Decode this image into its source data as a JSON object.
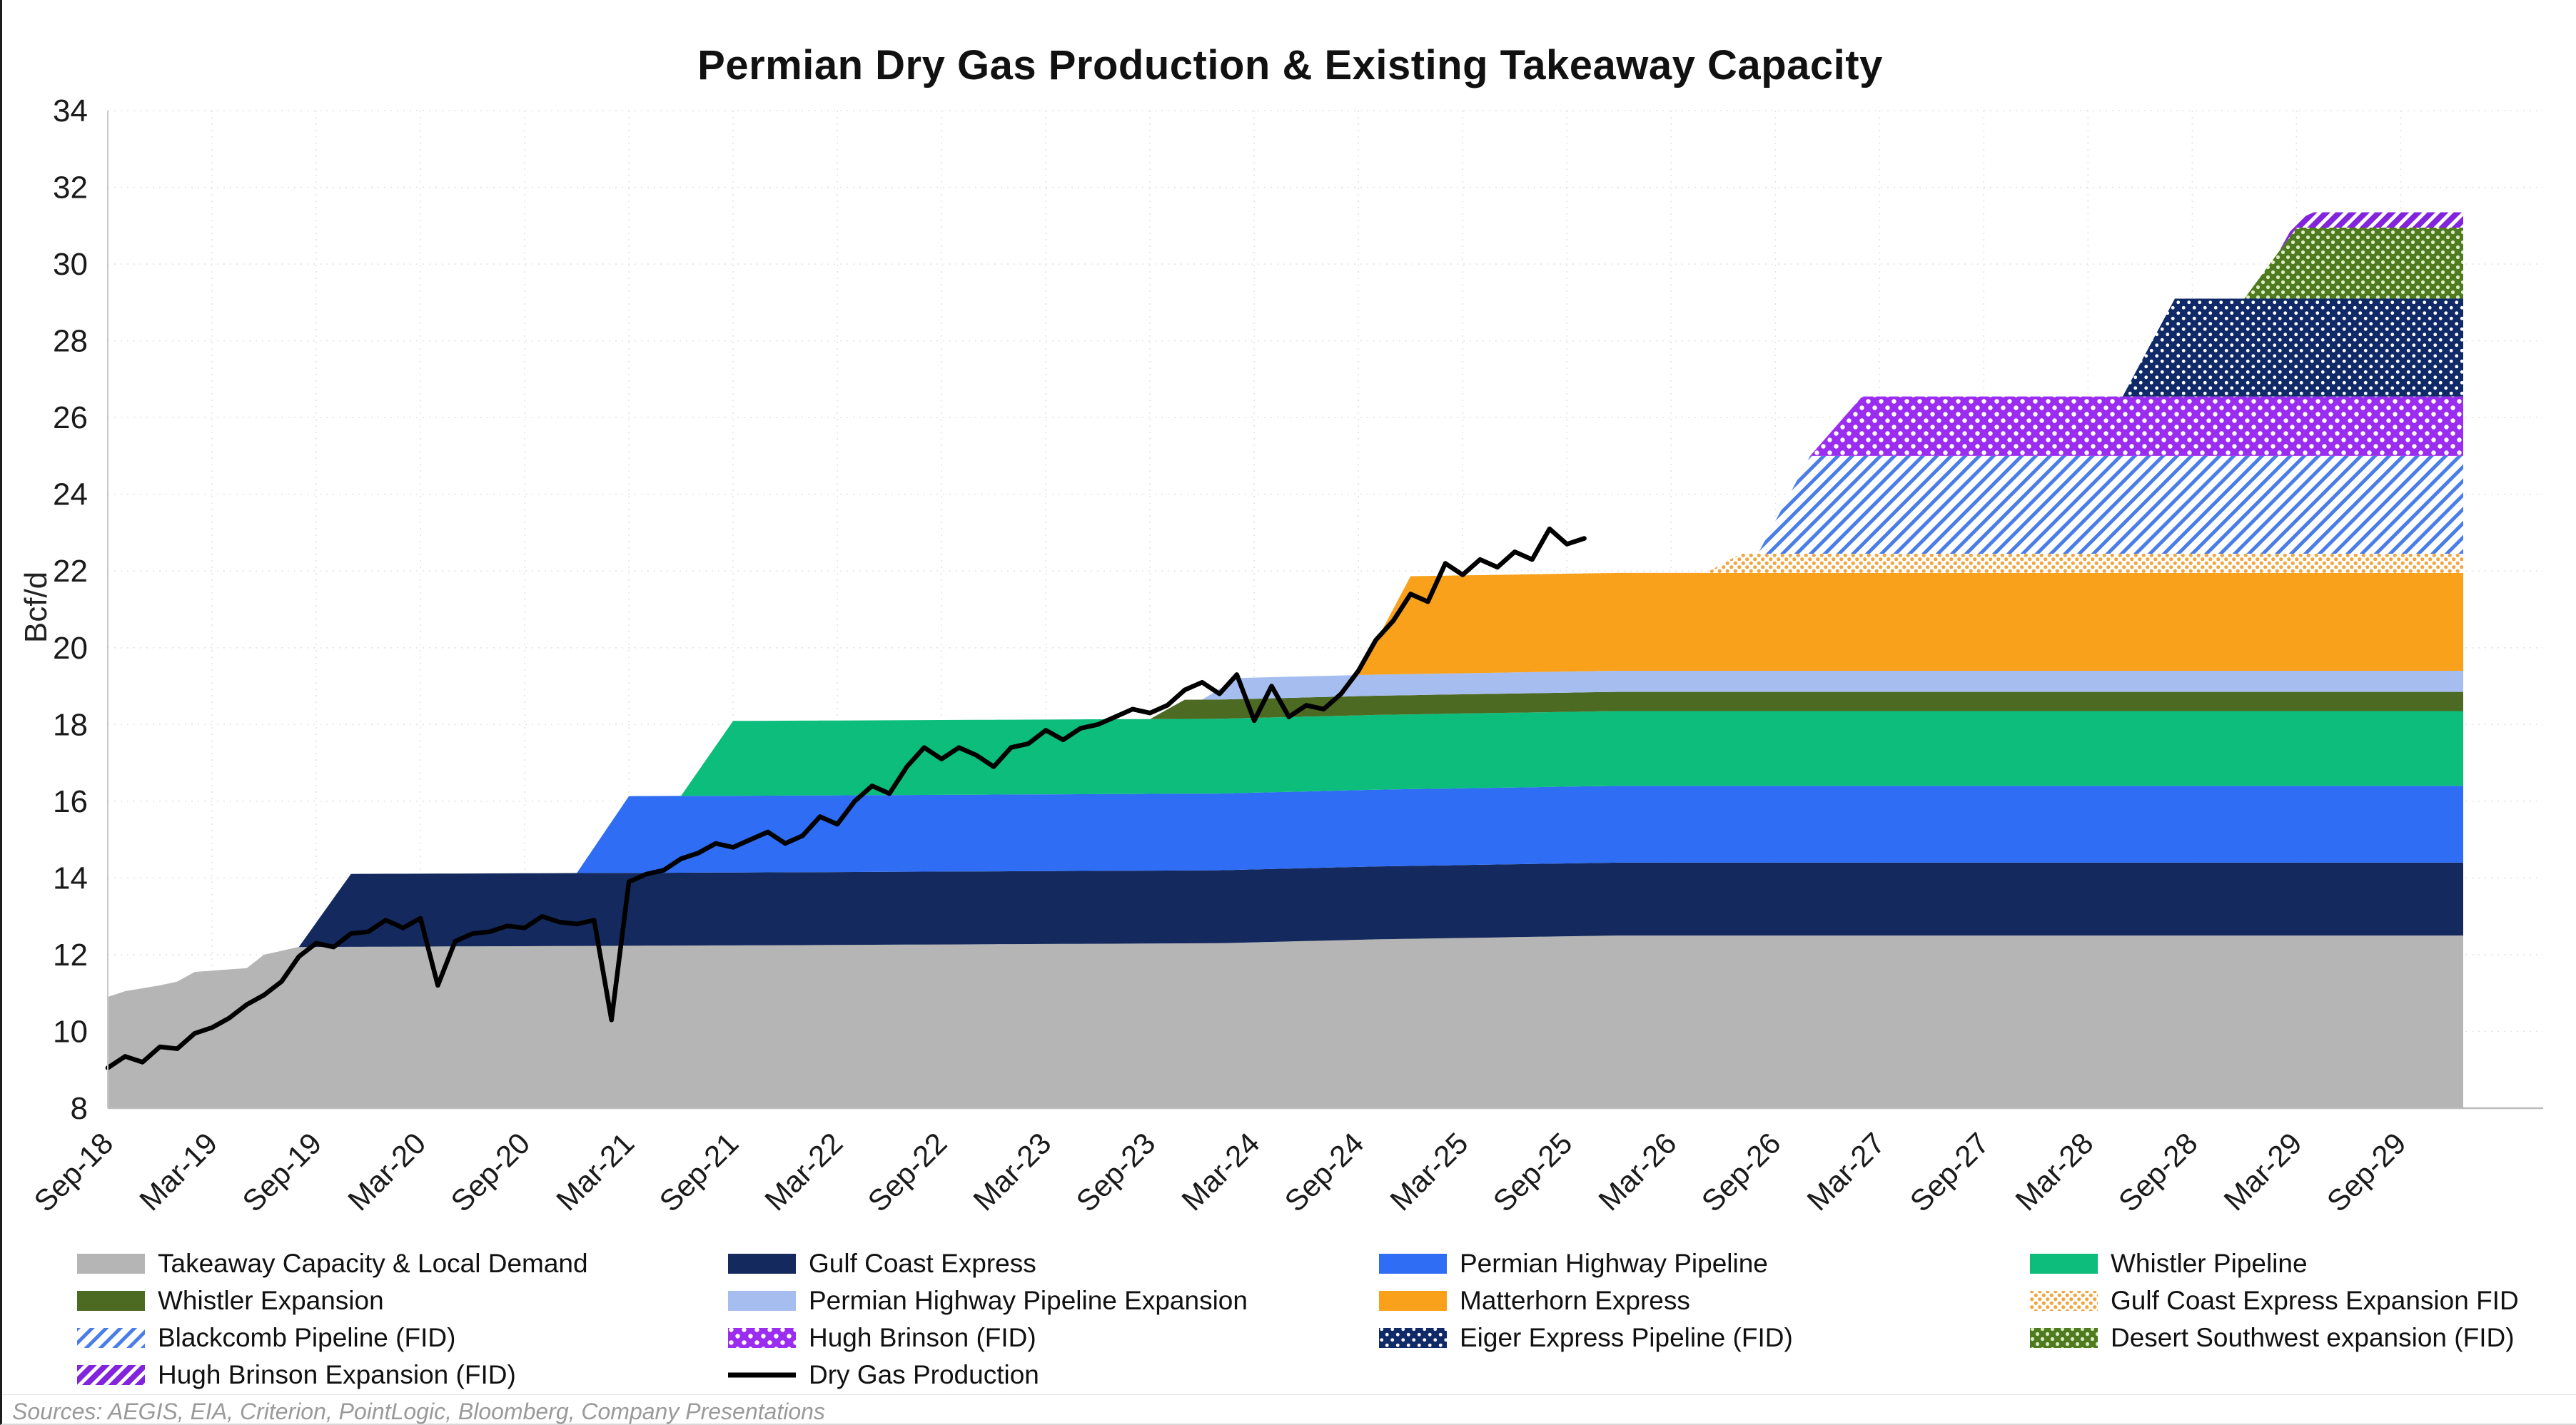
{
  "footer": {
    "sources": "Sources: AEGIS, EIA, Criterion, PointLogic, Bloomberg, Company Presentations"
  },
  "chart_data": {
    "type": "area",
    "stacked": true,
    "title": "Permian Dry Gas Production & Existing Takeaway Capacity",
    "xlabel": "",
    "ylabel": "Bcf/d",
    "ylim": [
      8,
      34
    ],
    "ytick_step": 2,
    "grid": true,
    "legend_position": "bottom",
    "x_range": [
      2018.6667,
      2029.9667
    ],
    "xticks": {
      "start": 2018.6667,
      "step": 0.5,
      "labels": [
        "Sep-18",
        "Mar-19",
        "Sep-19",
        "Mar-20",
        "Sep-20",
        "Mar-21",
        "Sep-21",
        "Mar-22",
        "Sep-22",
        "Mar-23",
        "Sep-23",
        "Mar-24",
        "Sep-24",
        "Mar-25",
        "Sep-25",
        "Mar-26",
        "Sep-26",
        "Mar-27",
        "Sep-27",
        "Mar-28",
        "Sep-28",
        "Mar-29",
        "Sep-29"
      ]
    },
    "series": [
      {
        "name": "Takeaway Capacity & Local Demand",
        "fill": "#b5b5b5",
        "pattern": null,
        "breakpoints": [
          [
            2018.6667,
            10.9
          ],
          [
            2018.75,
            11.05
          ],
          [
            2018.9167,
            11.2
          ],
          [
            2019.0,
            11.3
          ],
          [
            2019.0833,
            11.55
          ],
          [
            2019.3333,
            11.65
          ],
          [
            2019.4167,
            12.0
          ],
          [
            2019.5833,
            12.2
          ],
          [
            2022.0,
            12.25
          ],
          [
            2024.0,
            12.3
          ],
          [
            2024.75,
            12.4
          ],
          [
            2025.9,
            12.5
          ],
          [
            2029.9667,
            12.5
          ]
        ]
      },
      {
        "name": "Gulf Coast Express",
        "fill": "#142a5e",
        "pattern": null,
        "breakpoints": [
          [
            2018.6667,
            0
          ],
          [
            2019.5833,
            0
          ],
          [
            2019.8333,
            1.9
          ],
          [
            2029.9667,
            1.9
          ]
        ]
      },
      {
        "name": "Permian Highway Pipeline",
        "fill": "#2e6df4",
        "pattern": null,
        "breakpoints": [
          [
            2018.6667,
            0
          ],
          [
            2020.9167,
            0
          ],
          [
            2021.1667,
            2.0
          ],
          [
            2029.9667,
            2.0
          ]
        ]
      },
      {
        "name": "Whistler Pipeline",
        "fill": "#0dbd7c",
        "pattern": null,
        "breakpoints": [
          [
            2018.6667,
            0
          ],
          [
            2021.4167,
            0
          ],
          [
            2021.6667,
            1.95
          ],
          [
            2029.9667,
            1.95
          ]
        ]
      },
      {
        "name": "Whistler Expansion",
        "fill": "#4d6a23",
        "pattern": null,
        "breakpoints": [
          [
            2018.6667,
            0
          ],
          [
            2023.6667,
            0
          ],
          [
            2023.8333,
            0.5
          ],
          [
            2029.9667,
            0.5
          ]
        ]
      },
      {
        "name": "Permian Highway Pipeline Expansion",
        "fill": "#a6bdf0",
        "pattern": null,
        "breakpoints": [
          [
            2018.6667,
            0
          ],
          [
            2023.9167,
            0
          ],
          [
            2024.0833,
            0.55
          ],
          [
            2029.9667,
            0.55
          ]
        ]
      },
      {
        "name": "Matterhorn Express",
        "fill": "#f9a11b",
        "pattern": null,
        "breakpoints": [
          [
            2018.6667,
            0
          ],
          [
            2024.6667,
            0
          ],
          [
            2024.9167,
            2.55
          ],
          [
            2029.9667,
            2.55
          ]
        ]
      },
      {
        "name": "Gulf Coast Express Expansion FID",
        "fill": "pattern",
        "pattern": {
          "type": "dots",
          "bg": "#ffffff",
          "fg": "#f2a640",
          "size": 11,
          "r": 2.6
        },
        "breakpoints": [
          [
            2018.6667,
            0
          ],
          [
            2026.3333,
            0
          ],
          [
            2026.5,
            0.5
          ],
          [
            2029.9667,
            0.5
          ]
        ]
      },
      {
        "name": "Blackcomb Pipeline (FID)",
        "fill": "pattern",
        "pattern": {
          "type": "hatch",
          "bg": "#ffffff",
          "fg": "#4a7de8",
          "size": 14,
          "w": 5,
          "angle": 45
        },
        "breakpoints": [
          [
            2018.6667,
            0
          ],
          [
            2026.5833,
            0
          ],
          [
            2026.8333,
            2.55
          ],
          [
            2029.9667,
            2.55
          ]
        ]
      },
      {
        "name": "Hugh Brinson (FID)",
        "fill": "pattern",
        "pattern": {
          "type": "dots",
          "bg": "#9b2df0",
          "fg": "#ffffff",
          "size": 18,
          "r": 3.2
        },
        "breakpoints": [
          [
            2018.6667,
            0
          ],
          [
            2026.8333,
            0
          ],
          [
            2027.0833,
            1.55
          ],
          [
            2029.9667,
            1.55
          ]
        ]
      },
      {
        "name": "Eiger Express Pipeline (FID)",
        "fill": "pattern",
        "pattern": {
          "type": "dots",
          "bg": "#102a68",
          "fg": "#ffffff",
          "size": 15,
          "r": 2.4
        },
        "breakpoints": [
          [
            2018.6667,
            0
          ],
          [
            2028.3333,
            0
          ],
          [
            2028.5833,
            2.55
          ],
          [
            2029.9667,
            2.55
          ]
        ]
      },
      {
        "name": "Desert Southwest expansion (FID)",
        "fill": "pattern",
        "pattern": {
          "type": "dots",
          "bg": "#4f7a1f",
          "fg": "#dcecc3",
          "size": 14,
          "r": 2.6
        },
        "breakpoints": [
          [
            2018.6667,
            0
          ],
          [
            2028.9167,
            0
          ],
          [
            2029.1667,
            1.85
          ],
          [
            2029.9667,
            1.85
          ]
        ]
      },
      {
        "name": "Hugh Brinson Expansion (FID)",
        "fill": "pattern",
        "pattern": {
          "type": "hatch",
          "bg": "#ffffff",
          "fg": "#8324dd",
          "size": 13,
          "w": 8,
          "angle": 45
        },
        "breakpoints": [
          [
            2018.6667,
            0
          ],
          [
            2029.0833,
            0
          ],
          [
            2029.25,
            0.4
          ],
          [
            2029.9667,
            0.4
          ]
        ]
      }
    ],
    "line": {
      "name": "Dry Gas Production",
      "color": "#000000",
      "points": [
        [
          2018.6667,
          9.05
        ],
        [
          2018.75,
          9.35
        ],
        [
          2018.8333,
          9.2
        ],
        [
          2018.9167,
          9.6
        ],
        [
          2019.0,
          9.55
        ],
        [
          2019.0833,
          9.95
        ],
        [
          2019.1667,
          10.1
        ],
        [
          2019.25,
          10.35
        ],
        [
          2019.3333,
          10.7
        ],
        [
          2019.4167,
          10.95
        ],
        [
          2019.5,
          11.3
        ],
        [
          2019.5833,
          11.95
        ],
        [
          2019.6667,
          12.3
        ],
        [
          2019.75,
          12.2
        ],
        [
          2019.8333,
          12.55
        ],
        [
          2019.9167,
          12.6
        ],
        [
          2020.0,
          12.9
        ],
        [
          2020.0833,
          12.7
        ],
        [
          2020.1667,
          12.95
        ],
        [
          2020.25,
          11.2
        ],
        [
          2020.3333,
          12.35
        ],
        [
          2020.4167,
          12.55
        ],
        [
          2020.5,
          12.6
        ],
        [
          2020.5833,
          12.75
        ],
        [
          2020.6667,
          12.7
        ],
        [
          2020.75,
          13.0
        ],
        [
          2020.8333,
          12.85
        ],
        [
          2020.9167,
          12.8
        ],
        [
          2021.0,
          12.9
        ],
        [
          2021.0833,
          10.3
        ],
        [
          2021.1667,
          13.9
        ],
        [
          2021.25,
          14.1
        ],
        [
          2021.3333,
          14.2
        ],
        [
          2021.4167,
          14.5
        ],
        [
          2021.5,
          14.65
        ],
        [
          2021.5833,
          14.9
        ],
        [
          2021.6667,
          14.8
        ],
        [
          2021.75,
          15.0
        ],
        [
          2021.8333,
          15.2
        ],
        [
          2021.9167,
          14.9
        ],
        [
          2022.0,
          15.1
        ],
        [
          2022.0833,
          15.6
        ],
        [
          2022.1667,
          15.4
        ],
        [
          2022.25,
          16.0
        ],
        [
          2022.3333,
          16.4
        ],
        [
          2022.4167,
          16.2
        ],
        [
          2022.5,
          16.9
        ],
        [
          2022.5833,
          17.4
        ],
        [
          2022.6667,
          17.1
        ],
        [
          2022.75,
          17.4
        ],
        [
          2022.8333,
          17.2
        ],
        [
          2022.9167,
          16.9
        ],
        [
          2023.0,
          17.4
        ],
        [
          2023.0833,
          17.5
        ],
        [
          2023.1667,
          17.85
        ],
        [
          2023.25,
          17.6
        ],
        [
          2023.3333,
          17.9
        ],
        [
          2023.4167,
          18.0
        ],
        [
          2023.5,
          18.2
        ],
        [
          2023.5833,
          18.4
        ],
        [
          2023.6667,
          18.3
        ],
        [
          2023.75,
          18.5
        ],
        [
          2023.8333,
          18.9
        ],
        [
          2023.9167,
          19.1
        ],
        [
          2024.0,
          18.8
        ],
        [
          2024.0833,
          19.3
        ],
        [
          2024.1667,
          18.1
        ],
        [
          2024.25,
          19.0
        ],
        [
          2024.3333,
          18.2
        ],
        [
          2024.4167,
          18.5
        ],
        [
          2024.5,
          18.4
        ],
        [
          2024.5833,
          18.8
        ],
        [
          2024.6667,
          19.4
        ],
        [
          2024.75,
          20.2
        ],
        [
          2024.8333,
          20.7
        ],
        [
          2024.9167,
          21.4
        ],
        [
          2025.0,
          21.2
        ],
        [
          2025.0833,
          22.2
        ],
        [
          2025.1667,
          21.9
        ],
        [
          2025.25,
          22.3
        ],
        [
          2025.3333,
          22.1
        ],
        [
          2025.4167,
          22.5
        ],
        [
          2025.5,
          22.3
        ],
        [
          2025.5833,
          23.1
        ],
        [
          2025.6667,
          22.7
        ],
        [
          2025.75,
          22.85
        ]
      ]
    }
  }
}
